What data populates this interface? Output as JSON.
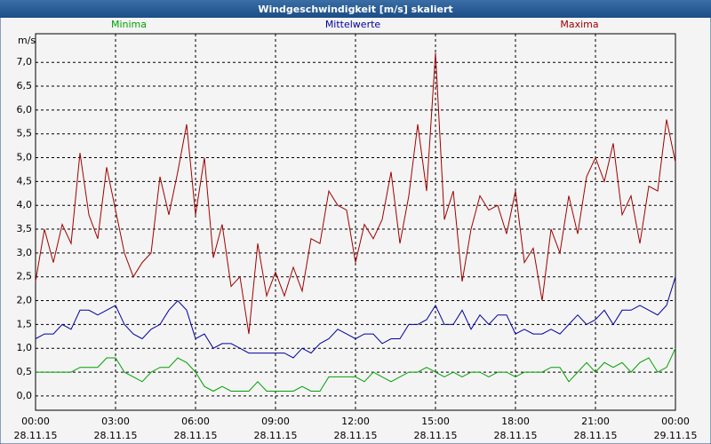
{
  "chart_data": {
    "type": "line",
    "title": "Windgeschwindigkeit [m/s] skaliert",
    "y_label": "m/s",
    "x": [
      0,
      20,
      40,
      60,
      80,
      100,
      120,
      140,
      160,
      180,
      200,
      220,
      240,
      260,
      280,
      300,
      320,
      340,
      360,
      380,
      400,
      420,
      440,
      460,
      480,
      500,
      520,
      540,
      560,
      580,
      600,
      620,
      640,
      660,
      680,
      700,
      720,
      740,
      760,
      780,
      800,
      820,
      840,
      860,
      880,
      900,
      920,
      940,
      960,
      980,
      1000,
      1020,
      1040,
      1060,
      1080,
      1100,
      1120,
      1140,
      1160,
      1180,
      1200,
      1220,
      1240,
      1260,
      1280,
      1300,
      1320,
      1340,
      1360,
      1380,
      1400,
      1420,
      1440
    ],
    "xlim": [
      0,
      1440
    ],
    "xticks": [
      {
        "value": 0,
        "label": "00:00\n28.11.15"
      },
      {
        "value": 180,
        "label": "03:00\n28.11.15"
      },
      {
        "value": 360,
        "label": "06:00\n28.11.15"
      },
      {
        "value": 540,
        "label": "09:00\n28.11.15"
      },
      {
        "value": 720,
        "label": "12:00\n28.11.15"
      },
      {
        "value": 900,
        "label": "15:00\n28.11.15"
      },
      {
        "value": 1080,
        "label": "18:00\n28.11.15"
      },
      {
        "value": 1260,
        "label": "21:00\n28.11.15"
      },
      {
        "value": 1440,
        "label": "00:00\n29.11.15"
      }
    ],
    "ylim": [
      -0.3,
      7.6
    ],
    "yticks": [
      {
        "value": 0,
        "label": "0,0"
      },
      {
        "value": 0.5,
        "label": "0,5"
      },
      {
        "value": 1,
        "label": "1,0"
      },
      {
        "value": 1.5,
        "label": "1,5"
      },
      {
        "value": 2,
        "label": "2,0"
      },
      {
        "value": 2.5,
        "label": "2,5"
      },
      {
        "value": 3,
        "label": "3,0"
      },
      {
        "value": 3.5,
        "label": "3,5"
      },
      {
        "value": 4,
        "label": "4,0"
      },
      {
        "value": 4.5,
        "label": "4,5"
      },
      {
        "value": 5,
        "label": "5,0"
      },
      {
        "value": 5.5,
        "label": "5,5"
      },
      {
        "value": 6,
        "label": "6,0"
      },
      {
        "value": 6.5,
        "label": "6,5"
      },
      {
        "value": 7,
        "label": "7,0"
      }
    ],
    "grid": true,
    "series": [
      {
        "name": "Minima",
        "color": "#00a000",
        "values": [
          0.5,
          0.5,
          0.5,
          0.5,
          0.5,
          0.6,
          0.6,
          0.6,
          0.8,
          0.8,
          0.5,
          0.4,
          0.3,
          0.5,
          0.6,
          0.6,
          0.8,
          0.7,
          0.5,
          0.2,
          0.1,
          0.2,
          0.1,
          0.1,
          0.1,
          0.3,
          0.1,
          0.1,
          0.1,
          0.1,
          0.2,
          0.1,
          0.1,
          0.4,
          0.4,
          0.4,
          0.4,
          0.3,
          0.5,
          0.4,
          0.3,
          0.4,
          0.5,
          0.5,
          0.6,
          0.5,
          0.4,
          0.5,
          0.4,
          0.5,
          0.5,
          0.4,
          0.5,
          0.5,
          0.4,
          0.5,
          0.5,
          0.5,
          0.6,
          0.6,
          0.3,
          0.5,
          0.7,
          0.5,
          0.7,
          0.6,
          0.7,
          0.5,
          0.7,
          0.8,
          0.5,
          0.6,
          1.0
        ]
      },
      {
        "name": "Mittelwerte",
        "color": "#0000a0",
        "values": [
          1.2,
          1.3,
          1.3,
          1.5,
          1.4,
          1.8,
          1.8,
          1.7,
          1.8,
          1.9,
          1.5,
          1.3,
          1.2,
          1.4,
          1.5,
          1.8,
          2.0,
          1.8,
          1.2,
          1.3,
          1.0,
          1.1,
          1.1,
          1.0,
          0.9,
          0.9,
          0.9,
          0.9,
          0.9,
          0.8,
          1.0,
          0.9,
          1.1,
          1.2,
          1.4,
          1.3,
          1.2,
          1.3,
          1.3,
          1.1,
          1.2,
          1.2,
          1.5,
          1.5,
          1.6,
          1.9,
          1.5,
          1.5,
          1.8,
          1.4,
          1.7,
          1.5,
          1.7,
          1.7,
          1.3,
          1.4,
          1.3,
          1.3,
          1.4,
          1.3,
          1.5,
          1.7,
          1.5,
          1.6,
          1.8,
          1.5,
          1.8,
          1.8,
          1.9,
          1.8,
          1.7,
          1.9,
          2.5
        ]
      },
      {
        "name": "Maxima",
        "color": "#a00000",
        "values": [
          2.4,
          3.5,
          2.8,
          3.6,
          3.2,
          5.1,
          3.8,
          3.3,
          4.8,
          3.9,
          3.0,
          2.5,
          2.8,
          3.0,
          4.6,
          3.8,
          4.7,
          5.7,
          3.8,
          5.0,
          2.9,
          3.6,
          2.3,
          2.5,
          1.3,
          3.2,
          2.1,
          2.6,
          2.1,
          2.7,
          2.2,
          3.3,
          3.2,
          4.3,
          4.0,
          3.9,
          2.8,
          3.6,
          3.3,
          3.7,
          4.7,
          3.2,
          4.2,
          5.7,
          4.3,
          7.2,
          3.7,
          4.3,
          2.4,
          3.5,
          4.2,
          3.9,
          4.0,
          3.4,
          4.3,
          2.8,
          3.1,
          2.0,
          3.5,
          3.0,
          4.2,
          3.4,
          4.6,
          5.0,
          4.5,
          5.3,
          3.8,
          4.2,
          3.2,
          4.4,
          4.3,
          5.8,
          4.9
        ]
      }
    ]
  }
}
